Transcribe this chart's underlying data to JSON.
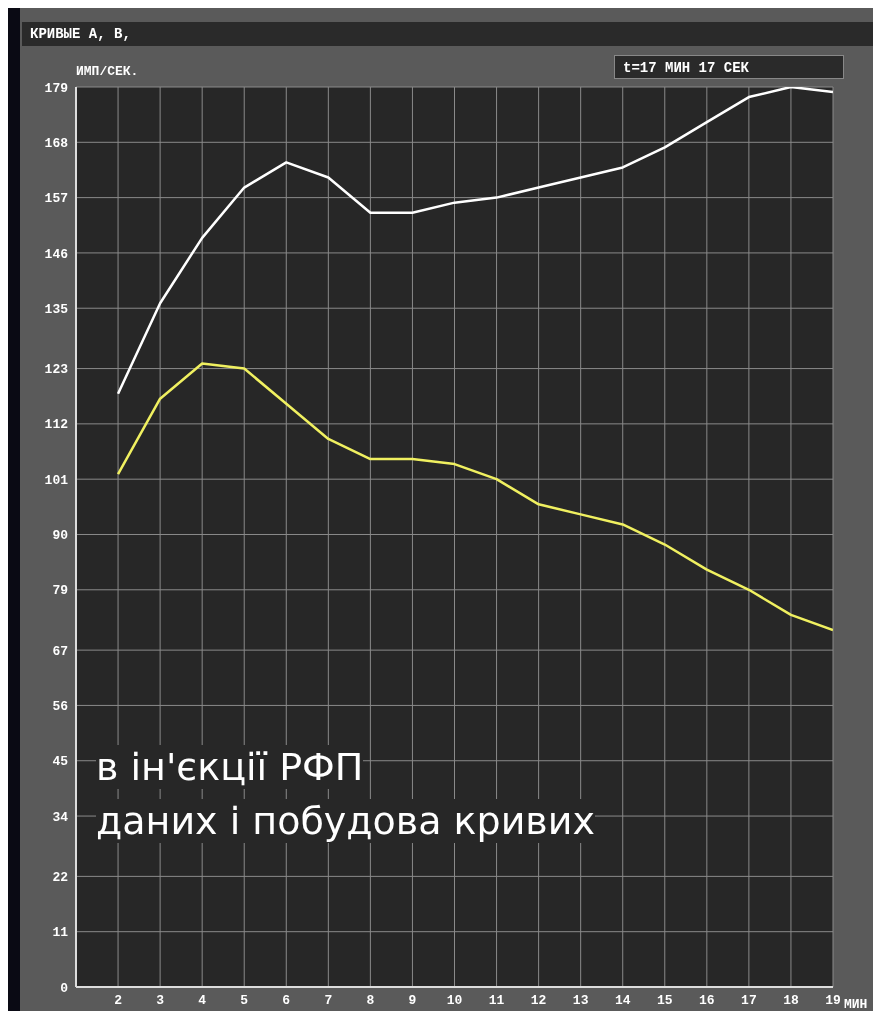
{
  "chart_data": {
    "type": "line",
    "title": "КРИВЫЕ A, B,",
    "xlabel": "МИН",
    "ylabel": "ИМП/СЕК.",
    "annotations": [
      "t=17 МИН 17 СЕК",
      "в ін'єкції РФП",
      "даних і побудова кривих"
    ],
    "x": [
      2,
      3,
      4,
      5,
      6,
      7,
      8,
      9,
      10,
      11,
      12,
      13,
      14,
      15,
      16,
      17,
      18,
      19
    ],
    "series": [
      {
        "color": "#ffffff",
        "values": [
          118,
          136,
          149,
          159,
          164,
          161,
          154,
          154,
          156,
          157,
          159,
          161,
          163,
          167,
          172,
          177,
          179,
          178
        ]
      },
      {
        "color": "#f0f060",
        "values": [
          102,
          117,
          124,
          123,
          116,
          109,
          105,
          105,
          104,
          101,
          96,
          94,
          92,
          88,
          83,
          79,
          74,
          71
        ]
      }
    ],
    "xlim": [
      1,
      19
    ],
    "xticks": [
      2,
      3,
      4,
      5,
      6,
      7,
      8,
      9,
      10,
      11,
      12,
      13,
      14,
      15,
      16,
      17,
      18,
      19
    ],
    "ylim": [
      0,
      179
    ],
    "yticks": [
      0,
      11,
      22,
      34,
      45,
      56,
      67,
      79,
      90,
      101,
      112,
      123,
      135,
      146,
      157,
      168,
      179
    ],
    "grid": true,
    "legend": false
  }
}
